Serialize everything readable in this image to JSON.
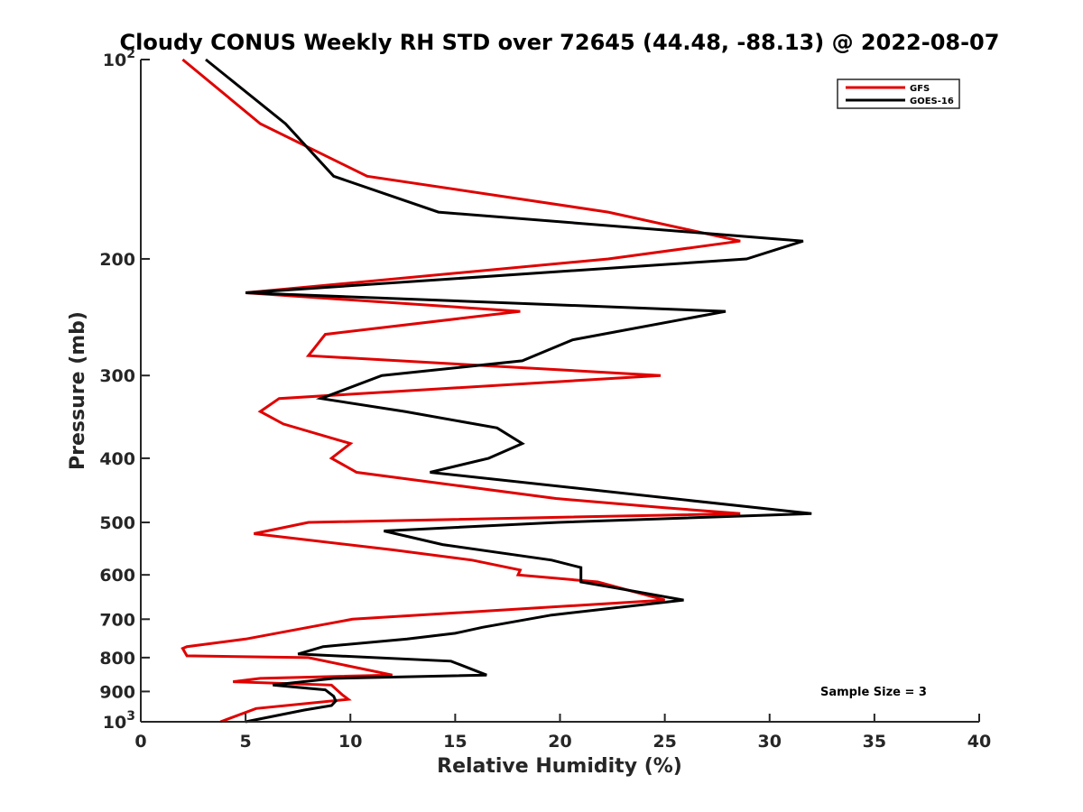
{
  "chart_data": {
    "type": "line",
    "title": "Cloudy CONUS Weekly RH STD over 72645 (44.48, -88.13) @ 2022-08-07",
    "xlabel": "Relative Humidity (%)",
    "ylabel": "Pressure (mb)",
    "xlim": [
      0,
      40
    ],
    "ylim": [
      100,
      1000
    ],
    "y_scale": "log",
    "y_reversed": true,
    "x_ticks": [
      "0",
      "5",
      "10",
      "15",
      "20",
      "25",
      "30",
      "35",
      "40"
    ],
    "y_ticks": [
      {
        "value": 100,
        "base": "10",
        "exp": "2"
      },
      {
        "value": 200,
        "label": "200"
      },
      {
        "value": 300,
        "label": "300"
      },
      {
        "value": 400,
        "label": "400"
      },
      {
        "value": 500,
        "label": "500"
      },
      {
        "value": 600,
        "label": "600"
      },
      {
        "value": 700,
        "label": "700"
      },
      {
        "value": 800,
        "label": "800"
      },
      {
        "value": 900,
        "label": "900"
      },
      {
        "value": 1000,
        "base": "10",
        "exp": "3"
      }
    ],
    "grid": false,
    "legend_position": "top-right",
    "annotation": "Sample Size = 3",
    "series": [
      {
        "name": "GFS",
        "color": "#e00000",
        "points": [
          [
            2.0,
            100
          ],
          [
            5.7,
            125
          ],
          [
            10.8,
            150
          ],
          [
            22.3,
            170
          ],
          [
            28.6,
            188
          ],
          [
            22.3,
            200
          ],
          [
            5.0,
            225
          ],
          [
            18.1,
            240
          ],
          [
            8.8,
            260
          ],
          [
            8.0,
            280
          ],
          [
            24.8,
            300
          ],
          [
            6.6,
            325
          ],
          [
            5.7,
            340
          ],
          [
            6.8,
            355
          ],
          [
            10.0,
            380
          ],
          [
            9.1,
            400
          ],
          [
            10.3,
            420
          ],
          [
            19.8,
            460
          ],
          [
            25.0,
            475
          ],
          [
            28.6,
            485
          ],
          [
            8.0,
            500
          ],
          [
            5.4,
            520
          ],
          [
            12.0,
            550
          ],
          [
            15.8,
            570
          ],
          [
            18.1,
            590
          ],
          [
            18.0,
            600
          ],
          [
            21.8,
            615
          ],
          [
            25.0,
            655
          ],
          [
            10.1,
            700
          ],
          [
            8.0,
            720
          ],
          [
            5.0,
            750
          ],
          [
            2.2,
            770
          ],
          [
            2.0,
            775
          ],
          [
            2.2,
            795
          ],
          [
            8.0,
            800
          ],
          [
            12.0,
            850
          ],
          [
            5.7,
            860
          ],
          [
            4.4,
            870
          ],
          [
            9.1,
            880
          ],
          [
            9.6,
            910
          ],
          [
            9.9,
            925
          ],
          [
            5.5,
            955
          ],
          [
            3.8,
            1000
          ]
        ]
      },
      {
        "name": "GOES-16",
        "color": "#000000",
        "points": [
          [
            3.1,
            100
          ],
          [
            6.9,
            125
          ],
          [
            9.2,
            150
          ],
          [
            14.2,
            170
          ],
          [
            31.6,
            188
          ],
          [
            28.9,
            200
          ],
          [
            5.0,
            225
          ],
          [
            27.9,
            240
          ],
          [
            20.6,
            265
          ],
          [
            18.2,
            285
          ],
          [
            11.5,
            300
          ],
          [
            8.6,
            325
          ],
          [
            12.6,
            340
          ],
          [
            17.0,
            360
          ],
          [
            18.2,
            380
          ],
          [
            16.6,
            400
          ],
          [
            13.8,
            420
          ],
          [
            32.0,
            485
          ],
          [
            19.9,
            500
          ],
          [
            11.6,
            515
          ],
          [
            14.4,
            540
          ],
          [
            19.6,
            570
          ],
          [
            21.0,
            585
          ],
          [
            21.0,
            615
          ],
          [
            22.9,
            630
          ],
          [
            25.9,
            655
          ],
          [
            19.6,
            690
          ],
          [
            16.3,
            720
          ],
          [
            15.0,
            735
          ],
          [
            12.7,
            750
          ],
          [
            8.7,
            770
          ],
          [
            7.5,
            790
          ],
          [
            14.8,
            810
          ],
          [
            16.5,
            850
          ],
          [
            9.2,
            860
          ],
          [
            6.3,
            880
          ],
          [
            8.8,
            895
          ],
          [
            9.2,
            915
          ],
          [
            9.3,
            930
          ],
          [
            9.1,
            945
          ],
          [
            7.8,
            960
          ],
          [
            5.0,
            1000
          ]
        ]
      }
    ]
  }
}
